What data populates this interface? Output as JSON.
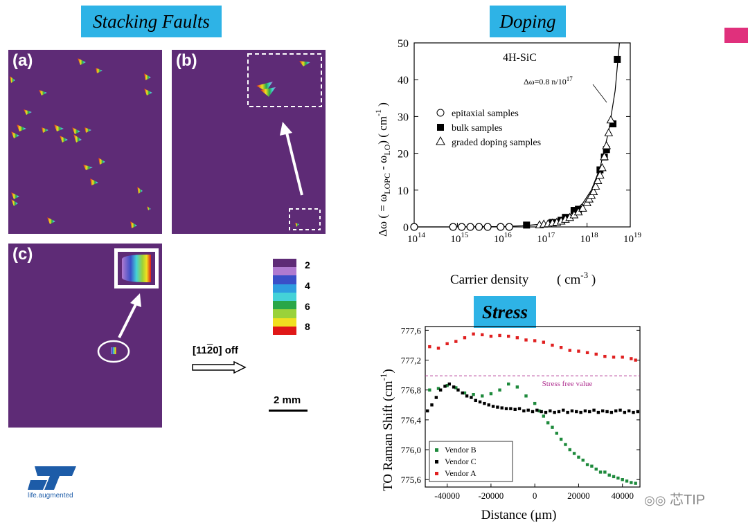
{
  "tags": {
    "stacking": "Stacking Faults",
    "doping": "Doping",
    "stress": "Stress"
  },
  "panels": {
    "a": "(a)",
    "b": "(b)",
    "c": "(c)"
  },
  "colorbar": {
    "labels": [
      "2",
      "4",
      "6",
      "8"
    ],
    "colors": [
      "#5e2b76",
      "#b07ad0",
      "#3a4fc8",
      "#2e9de0",
      "#44d2d8",
      "#2aa648",
      "#9ad23a",
      "#f0e020",
      "#e01818"
    ]
  },
  "direction": {
    "label": "[11",
    "bar": "2",
    "label_end": "0] off"
  },
  "scale": {
    "label": "2 mm"
  },
  "logo": {
    "tagline": "life.augmented"
  },
  "watermark": {
    "text": "芯TIP"
  },
  "doping_chart": {
    "type": "scatter",
    "title": "4H-SiC",
    "annotation_base": "Δω=0.8 n/10",
    "annotation_exp": "17",
    "xlabel": "Carrier density",
    "xunit": "( cm",
    "xunit_exp": "-3",
    "xunit_end": ")",
    "ylabel_parts": [
      "Δω ( = ω",
      "LOPC",
      " - ω",
      "LO",
      ")   ( cm",
      "-1",
      " )"
    ],
    "xticks_base": "10",
    "xticks_exp": [
      "14",
      "15",
      "16",
      "17",
      "18",
      "19"
    ],
    "yticks": [
      "0",
      "10",
      "20",
      "30",
      "40",
      "50"
    ],
    "xlim": [
      14,
      19
    ],
    "ylim": [
      0,
      50
    ],
    "legend": [
      "epitaxial samples",
      "bulk samples",
      "graded doping samples"
    ],
    "series": [
      {
        "name": "epitaxial samples",
        "marker": "circle",
        "x": [
          14.0,
          14.9,
          15.1,
          15.3,
          15.5,
          15.7,
          16.0,
          16.2
        ],
        "y": [
          0,
          0,
          0,
          0,
          0,
          0,
          0,
          0
        ]
      },
      {
        "name": "bulk samples",
        "marker": "square",
        "x": [
          16.6,
          17.2,
          17.4,
          17.5,
          17.7,
          17.8,
          18.3,
          18.4,
          18.45,
          18.6,
          18.7
        ],
        "y": [
          0.5,
          1.2,
          1.8,
          2.6,
          4.5,
          4.8,
          15.5,
          19,
          21,
          28,
          45.5
        ]
      },
      {
        "name": "graded doping samples",
        "marker": "triangle",
        "x": [
          16.9,
          17.0,
          17.1,
          17.2,
          17.3,
          17.4,
          17.5,
          17.6,
          17.7,
          17.8,
          17.9,
          18.0,
          18.05,
          18.1,
          18.15,
          18.2,
          18.25,
          18.3,
          18.35,
          18.4,
          18.45,
          18.5,
          18.55
        ],
        "y": [
          0.5,
          0.7,
          0.8,
          1,
          1.2,
          1.5,
          2,
          2.5,
          3.2,
          4,
          5,
          6.5,
          7.5,
          8.5,
          9.5,
          11,
          12.5,
          14,
          16,
          19,
          22,
          25.5,
          29
        ]
      }
    ],
    "fit_x": [
      14,
      15,
      16,
      16.5,
      17,
      17.3,
      17.6,
      17.9,
      18.1,
      18.3,
      18.5,
      18.65,
      18.75
    ],
    "fit_y": [
      0,
      0,
      0.1,
      0.3,
      0.8,
      1.6,
      3.2,
      6.4,
      10,
      16,
      26,
      37,
      50
    ]
  },
  "stress_chart": {
    "type": "scatter",
    "xlabel": "Distance (μm)",
    "ylabel": "TO Raman Shift (cm",
    "ylabel_exp": "-1",
    "ylabel_end": ")",
    "xticks": [
      "-40000",
      "-20000",
      "0",
      "20000",
      "40000"
    ],
    "yticks": [
      "775,6",
      "776,0",
      "776,4",
      "776,8",
      "777,2",
      "777,6"
    ],
    "xlim": [
      -50000,
      48000
    ],
    "ylim": [
      775.5,
      777.65
    ],
    "reference_line": 776.99,
    "reference_label": "Stress free value",
    "legend": [
      "Vendor B",
      "Vendor C",
      "Vendor A"
    ],
    "colors": {
      "Vendor A": "#e02020",
      "Vendor B": "#1e8a3c",
      "Vendor C": "#000000",
      "reference": "#b03090"
    },
    "series": [
      {
        "name": "Vendor A",
        "x": [
          -48000,
          -44000,
          -40000,
          -36000,
          -32000,
          -28000,
          -24000,
          -20000,
          -16000,
          -12000,
          -8000,
          -4000,
          0,
          4000,
          8000,
          12000,
          16000,
          20000,
          24000,
          28000,
          32000,
          36000,
          40000,
          44000,
          46000
        ],
        "y": [
          777.38,
          777.36,
          777.42,
          777.45,
          777.5,
          777.55,
          777.54,
          777.52,
          777.53,
          777.52,
          777.5,
          777.47,
          777.46,
          777.44,
          777.4,
          777.37,
          777.33,
          777.32,
          777.3,
          777.28,
          777.25,
          777.24,
          777.24,
          777.22,
          777.2
        ]
      },
      {
        "name": "Vendor B",
        "x": [
          -48000,
          -44000,
          -40000,
          -36000,
          -32000,
          -28000,
          -24000,
          -20000,
          -16000,
          -12000,
          -8000,
          -4000,
          0,
          2000,
          4000,
          6000,
          8000,
          10000,
          12000,
          14000,
          16000,
          18000,
          20000,
          22000,
          24000,
          26000,
          28000,
          30000,
          32000,
          34000,
          36000,
          38000,
          40000,
          42000,
          44000,
          46000
        ],
        "y": [
          776.8,
          776.82,
          776.86,
          776.83,
          776.76,
          776.74,
          776.72,
          776.75,
          776.8,
          776.88,
          776.84,
          776.72,
          776.62,
          776.52,
          776.45,
          776.36,
          776.3,
          776.22,
          776.14,
          776.07,
          776.0,
          775.95,
          775.9,
          775.86,
          775.8,
          775.78,
          775.74,
          775.7,
          775.7,
          775.66,
          775.64,
          775.62,
          775.6,
          775.58,
          775.56,
          775.55
        ]
      },
      {
        "name": "Vendor C",
        "x": [
          -49000,
          -47000,
          -45000,
          -43000,
          -41000,
          -39000,
          -37000,
          -35000,
          -33000,
          -31000,
          -29000,
          -27000,
          -25000,
          -23000,
          -21000,
          -19000,
          -17000,
          -15000,
          -13000,
          -11000,
          -9000,
          -7000,
          -5000,
          -3000,
          -1000,
          1000,
          3000,
          5000,
          7000,
          9000,
          11000,
          13000,
          15000,
          17000,
          19000,
          21000,
          23000,
          25000,
          27000,
          29000,
          31000,
          33000,
          35000,
          37000,
          39000,
          41000,
          43000,
          45000,
          47000
        ],
        "y": [
          776.52,
          776.6,
          776.7,
          776.8,
          776.85,
          776.88,
          776.84,
          776.8,
          776.76,
          776.72,
          776.7,
          776.66,
          776.64,
          776.62,
          776.6,
          776.58,
          776.57,
          776.56,
          776.55,
          776.55,
          776.54,
          776.55,
          776.52,
          776.53,
          776.51,
          776.53,
          776.51,
          776.5,
          776.52,
          776.5,
          776.51,
          776.53,
          776.5,
          776.52,
          776.51,
          776.5,
          776.52,
          776.51,
          776.53,
          776.5,
          776.52,
          776.51,
          776.5,
          776.52,
          776.53,
          776.5,
          776.52,
          776.5,
          776.51
        ]
      }
    ]
  }
}
